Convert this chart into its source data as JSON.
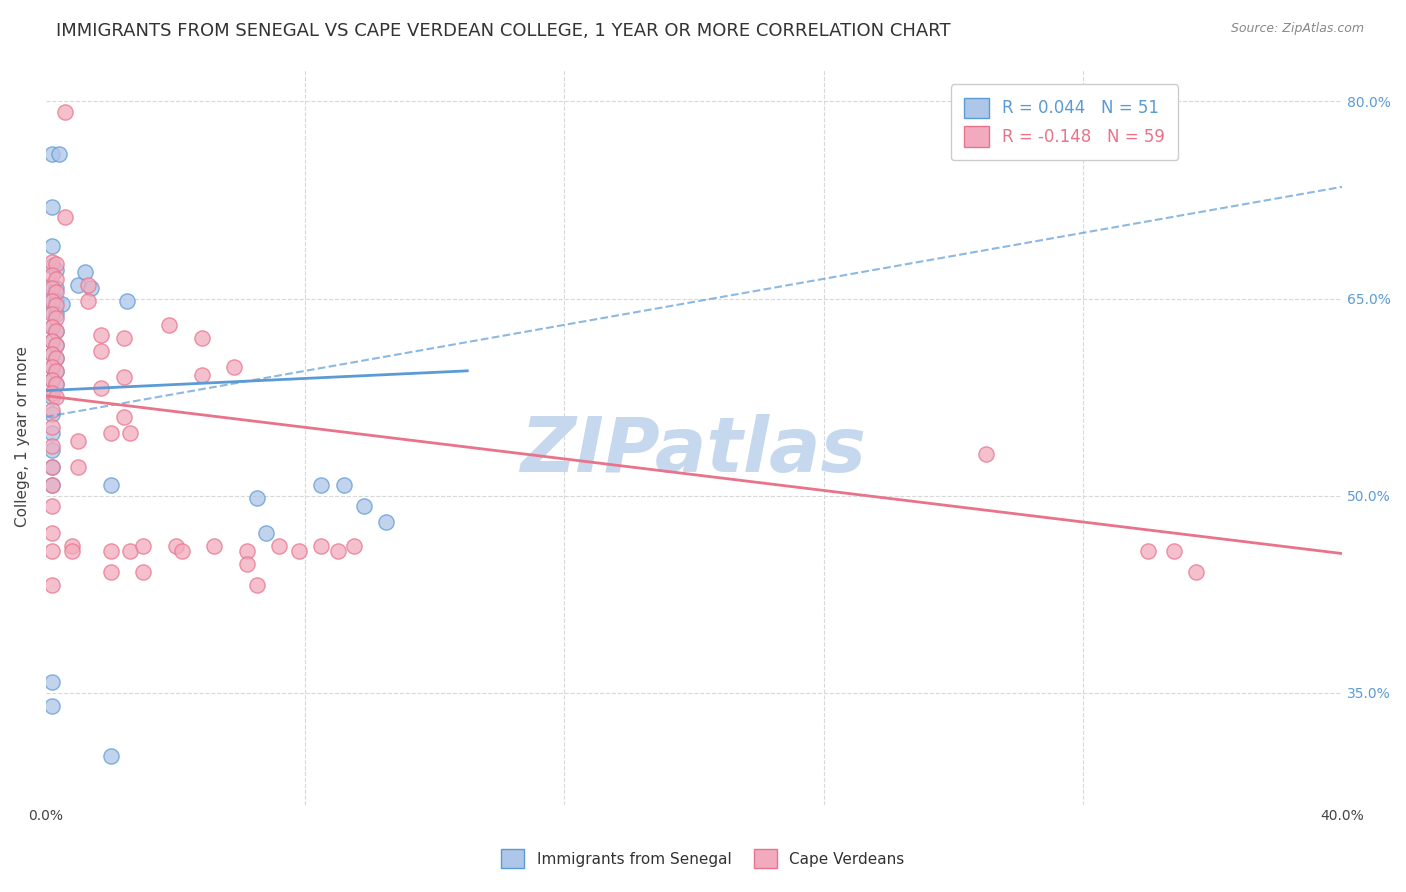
{
  "title": "IMMIGRANTS FROM SENEGAL VS CAPE VERDEAN COLLEGE, 1 YEAR OR MORE CORRELATION CHART",
  "source": "Source: ZipAtlas.com",
  "ylabel": "College, 1 year or more",
  "xlim": [
    0.0,
    0.4
  ],
  "ylim": [
    0.265,
    0.825
  ],
  "xticks": [
    0.0,
    0.08,
    0.16,
    0.24,
    0.32,
    0.4
  ],
  "xtick_labels": [
    "0.0%",
    "",
    "",
    "",
    "",
    "40.0%"
  ],
  "ytick_vals": [
    0.35,
    0.5,
    0.65,
    0.8
  ],
  "ytick_labels": [
    "35.0%",
    "50.0%",
    "65.0%",
    "80.0%"
  ],
  "watermark": "ZIPatlas",
  "blue_scatter": [
    [
      0.002,
      0.76
    ],
    [
      0.004,
      0.76
    ],
    [
      0.002,
      0.72
    ],
    [
      0.002,
      0.69
    ],
    [
      0.002,
      0.675
    ],
    [
      0.003,
      0.672
    ],
    [
      0.002,
      0.66
    ],
    [
      0.003,
      0.658
    ],
    [
      0.002,
      0.65
    ],
    [
      0.003,
      0.648
    ],
    [
      0.005,
      0.646
    ],
    [
      0.002,
      0.64
    ],
    [
      0.003,
      0.638
    ],
    [
      0.002,
      0.628
    ],
    [
      0.003,
      0.625
    ],
    [
      0.002,
      0.618
    ],
    [
      0.003,
      0.615
    ],
    [
      0.002,
      0.608
    ],
    [
      0.003,
      0.605
    ],
    [
      0.002,
      0.598
    ],
    [
      0.003,
      0.595
    ],
    [
      0.002,
      0.588
    ],
    [
      0.003,
      0.585
    ],
    [
      0.002,
      0.575
    ],
    [
      0.002,
      0.562
    ],
    [
      0.002,
      0.548
    ],
    [
      0.002,
      0.535
    ],
    [
      0.002,
      0.522
    ],
    [
      0.002,
      0.508
    ],
    [
      0.002,
      0.358
    ],
    [
      0.002,
      0.34
    ],
    [
      0.01,
      0.66
    ],
    [
      0.012,
      0.67
    ],
    [
      0.014,
      0.658
    ],
    [
      0.02,
      0.508
    ],
    [
      0.02,
      0.302
    ],
    [
      0.025,
      0.648
    ],
    [
      0.065,
      0.498
    ],
    [
      0.068,
      0.472
    ],
    [
      0.085,
      0.508
    ],
    [
      0.092,
      0.508
    ],
    [
      0.098,
      0.492
    ],
    [
      0.105,
      0.48
    ]
  ],
  "pink_scatter": [
    [
      0.002,
      0.678
    ],
    [
      0.003,
      0.676
    ],
    [
      0.002,
      0.668
    ],
    [
      0.003,
      0.665
    ],
    [
      0.002,
      0.658
    ],
    [
      0.003,
      0.655
    ],
    [
      0.002,
      0.648
    ],
    [
      0.003,
      0.645
    ],
    [
      0.002,
      0.638
    ],
    [
      0.003,
      0.635
    ],
    [
      0.002,
      0.628
    ],
    [
      0.003,
      0.625
    ],
    [
      0.002,
      0.618
    ],
    [
      0.003,
      0.615
    ],
    [
      0.002,
      0.608
    ],
    [
      0.003,
      0.605
    ],
    [
      0.002,
      0.598
    ],
    [
      0.003,
      0.595
    ],
    [
      0.002,
      0.588
    ],
    [
      0.003,
      0.585
    ],
    [
      0.002,
      0.578
    ],
    [
      0.003,
      0.575
    ],
    [
      0.002,
      0.565
    ],
    [
      0.002,
      0.552
    ],
    [
      0.002,
      0.538
    ],
    [
      0.002,
      0.522
    ],
    [
      0.002,
      0.508
    ],
    [
      0.002,
      0.492
    ],
    [
      0.002,
      0.472
    ],
    [
      0.002,
      0.458
    ],
    [
      0.002,
      0.432
    ],
    [
      0.006,
      0.792
    ],
    [
      0.006,
      0.712
    ],
    [
      0.008,
      0.462
    ],
    [
      0.008,
      0.458
    ],
    [
      0.01,
      0.542
    ],
    [
      0.01,
      0.522
    ],
    [
      0.013,
      0.66
    ],
    [
      0.013,
      0.648
    ],
    [
      0.017,
      0.622
    ],
    [
      0.017,
      0.61
    ],
    [
      0.017,
      0.582
    ],
    [
      0.02,
      0.548
    ],
    [
      0.02,
      0.458
    ],
    [
      0.02,
      0.442
    ],
    [
      0.024,
      0.62
    ],
    [
      0.024,
      0.59
    ],
    [
      0.024,
      0.56
    ],
    [
      0.026,
      0.548
    ],
    [
      0.026,
      0.458
    ],
    [
      0.03,
      0.462
    ],
    [
      0.03,
      0.442
    ],
    [
      0.038,
      0.63
    ],
    [
      0.04,
      0.462
    ],
    [
      0.042,
      0.458
    ],
    [
      0.048,
      0.62
    ],
    [
      0.048,
      0.592
    ],
    [
      0.052,
      0.462
    ],
    [
      0.058,
      0.598
    ],
    [
      0.062,
      0.458
    ],
    [
      0.062,
      0.448
    ],
    [
      0.065,
      0.432
    ],
    [
      0.072,
      0.462
    ],
    [
      0.078,
      0.458
    ],
    [
      0.085,
      0.462
    ],
    [
      0.09,
      0.458
    ],
    [
      0.095,
      0.462
    ],
    [
      0.29,
      0.532
    ],
    [
      0.34,
      0.458
    ],
    [
      0.348,
      0.458
    ],
    [
      0.355,
      0.442
    ]
  ],
  "blue_solid_line_x": [
    0.0,
    0.13
  ],
  "blue_solid_line_y": [
    0.58,
    0.595
  ],
  "blue_dash_line_x": [
    0.0,
    0.4
  ],
  "blue_dash_line_y": [
    0.56,
    0.735
  ],
  "pink_line_x": [
    0.0,
    0.4
  ],
  "pink_line_y": [
    0.576,
    0.456
  ],
  "blue_color": "#5b9bd5",
  "pink_color": "#e8738a",
  "blue_fill": "#aec6e8",
  "pink_fill": "#f2abbe",
  "grid_color": "#d8d8d8",
  "watermark_color": "#c5d8ee",
  "background_color": "#ffffff",
  "title_fontsize": 13,
  "axis_label_fontsize": 11,
  "tick_fontsize": 10,
  "legend_fontsize": 12
}
